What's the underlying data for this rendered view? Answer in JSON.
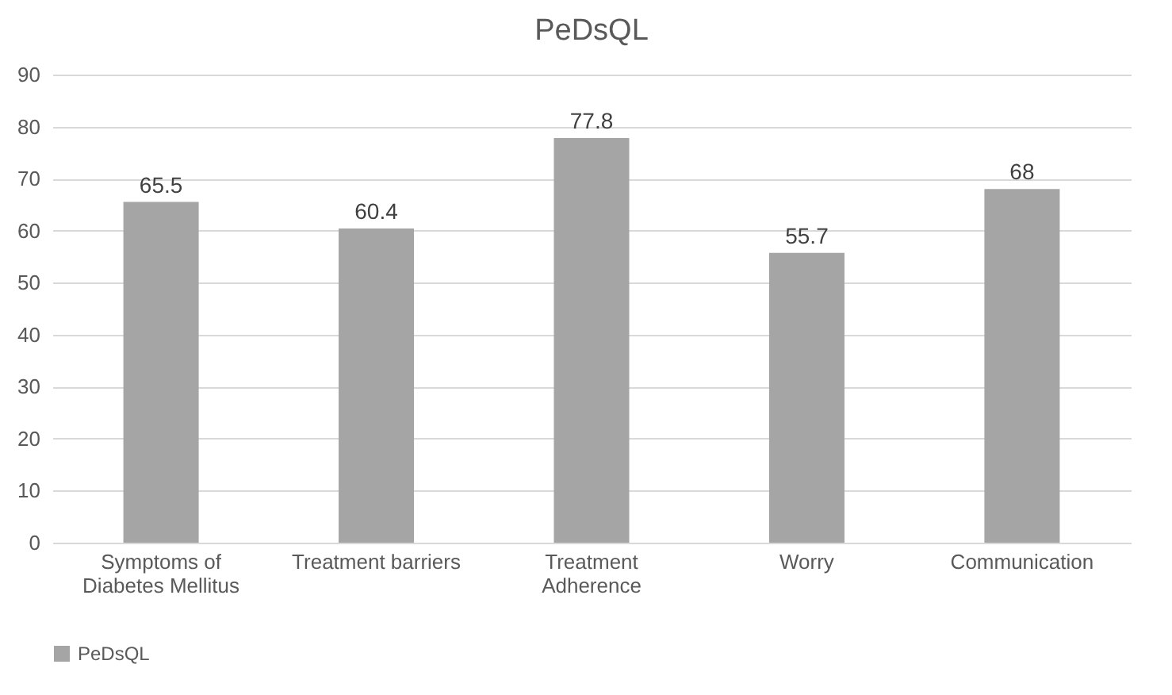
{
  "chart_data": {
    "type": "bar",
    "title": "PeDsQL",
    "categories": [
      "Symptoms of Diabetes Mellitus",
      "Treatment barriers",
      "Treatment Adherence",
      "Worry",
      "Communication"
    ],
    "series": [
      {
        "name": "PeDsQL",
        "color": "#a5a5a5",
        "values": [
          65.5,
          60.4,
          77.8,
          55.7,
          68
        ]
      }
    ],
    "ylim": [
      0,
      90
    ],
    "yticks": [
      0,
      10,
      20,
      30,
      40,
      50,
      60,
      70,
      80,
      90
    ],
    "grid": "y",
    "legend": "bottom",
    "data_labels": true
  }
}
